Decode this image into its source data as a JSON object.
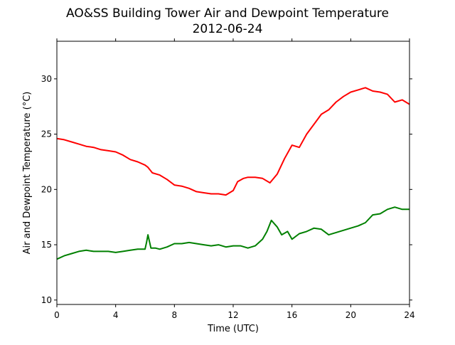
{
  "chart_data": {
    "type": "line",
    "title": "AO&SS Building Tower Air and Dewpoint Temperature",
    "subtitle": "2012-06-24",
    "xlabel": "Time (UTC)",
    "ylabel": "Air and Dewpoint Temperature (°C)",
    "xlim": [
      0,
      24
    ],
    "ylim": [
      9.6,
      33.4
    ],
    "xticks": [
      0,
      4,
      8,
      12,
      16,
      20,
      24
    ],
    "yticks": [
      10,
      15,
      20,
      25,
      30
    ],
    "grid": false,
    "legend": "none",
    "series": [
      {
        "color": "#ff0000",
        "x": [
          0,
          0.5,
          1,
          1.5,
          2,
          2.5,
          3,
          3.5,
          4,
          4.5,
          5,
          5.5,
          6,
          6.2,
          6.5,
          7,
          7.5,
          8,
          8.5,
          9,
          9.5,
          10,
          10.5,
          11,
          11.5,
          12,
          12.3,
          12.7,
          13,
          13.5,
          14,
          14.5,
          15,
          15.5,
          16,
          16.5,
          17,
          17.5,
          18,
          18.5,
          19,
          19.5,
          20,
          20.5,
          21,
          21.5,
          22,
          22.5,
          23,
          23.5,
          24
        ],
        "y": [
          24.6,
          24.5,
          24.3,
          24.1,
          23.9,
          23.8,
          23.6,
          23.5,
          23.4,
          23.1,
          22.7,
          22.5,
          22.2,
          22.0,
          21.5,
          21.3,
          20.9,
          20.4,
          20.3,
          20.1,
          19.8,
          19.7,
          19.6,
          19.6,
          19.5,
          19.9,
          20.7,
          21.0,
          21.1,
          21.1,
          21.0,
          20.6,
          21.4,
          22.8,
          24.0,
          23.8,
          25.0,
          25.9,
          26.8,
          27.2,
          27.9,
          28.4,
          28.8,
          29.0,
          29.2,
          28.9,
          28.8,
          28.6,
          27.9,
          28.1,
          27.7
        ]
      },
      {
        "color": "#008000",
        "x": [
          0,
          0.5,
          1,
          1.5,
          2,
          2.5,
          3,
          3.5,
          4,
          4.5,
          5,
          5.5,
          6,
          6.1,
          6.2,
          6.4,
          6.7,
          7,
          7.5,
          8,
          8.5,
          9,
          9.5,
          10,
          10.5,
          11,
          11.5,
          12,
          12.5,
          13,
          13.5,
          14,
          14.3,
          14.6,
          15,
          15.3,
          15.7,
          16,
          16.5,
          17,
          17.5,
          18,
          18.5,
          19,
          19.5,
          20,
          20.5,
          21,
          21.5,
          22,
          22.5,
          23,
          23.5,
          24
        ],
        "y": [
          13.7,
          14.0,
          14.2,
          14.4,
          14.5,
          14.4,
          14.4,
          14.4,
          14.3,
          14.4,
          14.5,
          14.6,
          14.6,
          15.2,
          15.9,
          14.7,
          14.7,
          14.6,
          14.8,
          15.1,
          15.1,
          15.2,
          15.1,
          15.0,
          14.9,
          15.0,
          14.8,
          14.9,
          14.9,
          14.7,
          14.9,
          15.5,
          16.2,
          17.2,
          16.6,
          15.9,
          16.2,
          15.5,
          16.0,
          16.2,
          16.5,
          16.4,
          15.9,
          16.1,
          16.3,
          16.5,
          16.7,
          17.0,
          17.7,
          17.8,
          18.2,
          18.4,
          18.2,
          18.2
        ]
      }
    ]
  }
}
